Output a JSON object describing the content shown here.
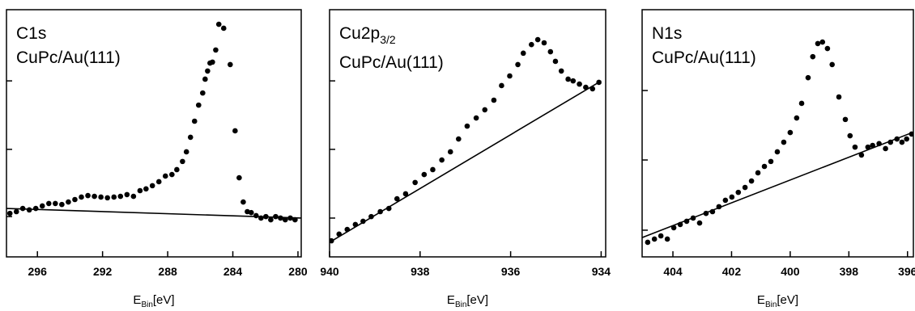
{
  "chart_data": [
    {
      "type": "scatter",
      "annotations": [
        {
          "text": "C1s"
        },
        {
          "text": "CuPc/Au(111)"
        }
      ],
      "xlabel": {
        "text": "E",
        "sub": "Bin",
        "suffix": "[eV]"
      },
      "color": "#000000",
      "x": [
        297.69,
        297.29,
        296.9,
        296.5,
        296.1,
        295.7,
        295.3,
        294.9,
        294.5,
        294.1,
        293.7,
        293.3,
        292.9,
        292.5,
        292.1,
        291.7,
        291.3,
        290.9,
        290.5,
        290.1,
        289.7,
        289.33,
        288.94,
        288.54,
        288.14,
        287.74,
        287.44,
        287.09,
        286.85,
        286.6,
        286.35,
        286.1,
        285.85,
        285.7,
        285.55,
        285.4,
        285.25,
        285.05,
        284.86,
        284.56,
        284.16,
        283.86,
        283.61,
        283.36,
        283.11,
        282.87,
        282.57,
        282.27,
        281.97,
        281.67,
        281.37,
        281.07,
        280.78,
        280.47,
        280.18
      ],
      "values": [
        17.6,
        18.3,
        19.6,
        19.0,
        19.6,
        20.6,
        21.6,
        21.6,
        21.2,
        22.2,
        23.2,
        24.2,
        24.8,
        24.5,
        24.2,
        23.9,
        24.2,
        24.5,
        25.2,
        24.5,
        26.8,
        27.5,
        28.8,
        30.4,
        32.7,
        33.3,
        35.3,
        38.6,
        42.5,
        48.4,
        54.9,
        61.4,
        66.3,
        71.9,
        75.2,
        78.4,
        78.8,
        83.7,
        94.1,
        92.5,
        77.8,
        51.0,
        32.0,
        22.2,
        18.3,
        17.9,
        16.7,
        15.7,
        16.3,
        15.0,
        16.3,
        15.7,
        15.0,
        15.7,
        15.0
      ],
      "line": {
        "x": [
          297.9,
          279.8
        ],
        "values": [
          19.6,
          15.7
        ]
      },
      "xlim": [
        297.9,
        279.8
      ],
      "ylim": [
        0,
        100
      ],
      "xticks": [
        296,
        292,
        288,
        284,
        280
      ],
      "yticks": [
        16.3,
        43.5,
        71.2
      ]
    },
    {
      "type": "scatter",
      "annotations": [
        {
          "text": "Cu2p",
          "sub": "3/2"
        },
        {
          "text": "CuPc/Au(111)"
        }
      ],
      "xlabel": {
        "text": "E",
        "sub": "Bin",
        "suffix": "[eV]"
      },
      "color": "#000000",
      "x": [
        939.96,
        939.79,
        939.61,
        939.43,
        939.26,
        939.08,
        938.88,
        938.69,
        938.51,
        938.32,
        938.11,
        937.91,
        937.72,
        937.52,
        937.33,
        937.15,
        936.96,
        936.76,
        936.57,
        936.37,
        936.2,
        936.02,
        935.84,
        935.72,
        935.54,
        935.4,
        935.26,
        935.12,
        935.01,
        934.88,
        934.73,
        934.62,
        934.48,
        934.34,
        934.19,
        934.05
      ],
      "values": [
        6.5,
        9.2,
        11.1,
        13.1,
        14.4,
        16.3,
        18.3,
        19.6,
        23.5,
        25.5,
        30.1,
        33.3,
        35.3,
        39.2,
        42.5,
        47.7,
        52.9,
        56.2,
        59.5,
        63.4,
        69.3,
        73.2,
        77.8,
        82.4,
        85.9,
        87.9,
        86.6,
        83.0,
        79.1,
        75.2,
        71.9,
        71.2,
        69.9,
        68.6,
        68.0,
        70.6
      ],
      "line": {
        "x": [
          940,
          934
        ],
        "values": [
          5.9,
          71.2
        ]
      },
      "xlim": [
        940,
        933.9
      ],
      "ylim": [
        0,
        100
      ],
      "xticks": [
        940,
        938,
        936,
        934
      ],
      "yticks": [
        15.7,
        43.5,
        71.2
      ]
    },
    {
      "type": "scatter",
      "annotations": [
        {
          "text": "N1s"
        },
        {
          "text": "CuPc/Au(111)"
        }
      ],
      "xlabel": {
        "text": "E",
        "sub": "Bin",
        "suffix": "[eV]"
      },
      "color": "#000000",
      "x": [
        404.86,
        404.63,
        404.41,
        404.19,
        403.97,
        403.75,
        403.53,
        403.31,
        403.09,
        402.87,
        402.65,
        402.43,
        402.21,
        401.99,
        401.77,
        401.54,
        401.32,
        401.1,
        400.88,
        400.66,
        400.44,
        400.22,
        400.0,
        399.78,
        399.61,
        399.39,
        399.23,
        399.06,
        398.9,
        398.73,
        398.57,
        398.34,
        398.12,
        397.96,
        397.79,
        397.57,
        397.35,
        397.19,
        396.97,
        396.75,
        396.58,
        396.36,
        396.19,
        396.03,
        395.86
      ],
      "values": [
        5.9,
        7.2,
        8.5,
        7.2,
        11.8,
        13.1,
        14.4,
        15.7,
        13.7,
        17.6,
        18.3,
        20.3,
        22.9,
        24.2,
        26.1,
        28.1,
        30.7,
        34.0,
        36.6,
        38.6,
        42.5,
        46.4,
        50.3,
        56.2,
        62.1,
        72.5,
        81.0,
        86.3,
        86.9,
        84.3,
        77.8,
        64.7,
        55.6,
        49.0,
        44.4,
        41.2,
        44.4,
        45.1,
        45.8,
        43.8,
        46.4,
        47.7,
        46.4,
        47.7,
        49.7
      ],
      "line": {
        "x": [
          405.05,
          395.75
        ],
        "values": [
          7.8,
          50.7
        ]
      },
      "xlim": [
        405.05,
        395.8
      ],
      "ylim": [
        0,
        100
      ],
      "xticks": [
        404,
        402,
        400,
        398,
        396
      ],
      "yticks": [
        10.8,
        39.2,
        67.3
      ]
    }
  ]
}
